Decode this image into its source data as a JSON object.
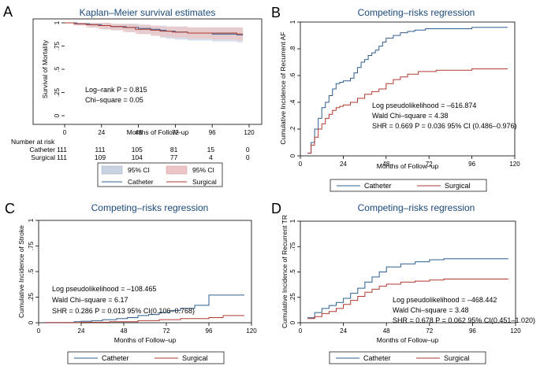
{
  "colors": {
    "catheter": "#2f5f8f",
    "surgical": "#b03a30",
    "catheter_ci": "#c9d3e2",
    "surgical_ci": "#ecc6c6",
    "title": "#1a4a7a",
    "axis": "#000000"
  },
  "panels": [
    {
      "letter": "A",
      "title": "Kaplan–Meier survival estimates",
      "xlabel": "Months of Follow–up",
      "ylabel": "Survival of Mortality",
      "annotations": [
        "Log–rank P = 0.815",
        "Chi–square = 0.05"
      ],
      "legend": {
        "items": [
          "95% CI",
          "95% CI",
          "Catheter",
          "Surgical"
        ]
      },
      "risk_table": {
        "header": "Number at risk",
        "rows": [
          {
            "label": "Catheter",
            "values": [
              "111",
              "111",
              "105",
              "81",
              "15",
              "0"
            ]
          },
          {
            "label": "Surgical",
            "values": [
              "111",
              "109",
              "104",
              "77",
              "4",
              "0"
            ]
          }
        ]
      }
    },
    {
      "letter": "B",
      "title": "Competing–risks regression",
      "xlabel": "Months of Follow–up",
      "ylabel": "Cumulative Incidence of Recurrent AF",
      "annotations": [
        "Log pseudolikelihood = –616.874",
        "Wald Chi–square = 4.38",
        "SHR = 0.669 P = 0.036 95% CI (0.486–0.976)"
      ],
      "legend": {
        "items": [
          "Catheter",
          "Surgical"
        ]
      }
    },
    {
      "letter": "C",
      "title": "Competing–risks regression",
      "xlabel": "Months of Follow–up",
      "ylabel": "Cumulative Incidence of Stroke",
      "annotations": [
        "Log pseudolikelihood = –108.465",
        "Wald Chi–square = 6.17",
        "SHR = 0.286 P = 0.013 95% CI(0.106–0.768)"
      ],
      "legend": {
        "items": [
          "Catheter",
          "Surgical"
        ]
      }
    },
    {
      "letter": "D",
      "title": "Competing–risks regression",
      "xlabel": "Months of Follow–up",
      "ylabel": "Cumulative Incidence of Recurrent TR",
      "annotations": [
        "Log pseudolikelihood = –468.442",
        "Wald Chi–square = 3.48",
        "SHR = 0.678 P = 0.062 95% CI(0.451–1.020)"
      ],
      "legend": {
        "items": [
          "Catheter",
          "Surgical"
        ]
      }
    }
  ],
  "chart_data": [
    {
      "type": "line",
      "panel": "A",
      "title": "Kaplan–Meier survival estimates",
      "xlabel": "Months of Follow–up",
      "ylabel": "Survival of Mortality",
      "xlim": [
        0,
        120
      ],
      "ylim": [
        0,
        1
      ],
      "xticks": [
        0,
        24,
        48,
        72,
        96,
        120
      ],
      "xtick_labels": [
        "0",
        "24",
        "48",
        "72",
        "96",
        "120"
      ],
      "yticks": [
        0,
        0.25,
        0.5,
        0.75,
        1
      ],
      "ytick_labels": [
        "0",
        ".25",
        ".5",
        ".75",
        "1"
      ],
      "series": [
        {
          "name": "Catheter",
          "x": [
            0,
            8,
            16,
            24,
            30,
            40,
            48,
            56,
            62,
            66,
            72,
            80,
            96,
            112,
            116
          ],
          "y": [
            1,
            0.99,
            0.98,
            0.97,
            0.96,
            0.95,
            0.94,
            0.93,
            0.92,
            0.91,
            0.9,
            0.89,
            0.88,
            0.87,
            0.87
          ],
          "ci_lower": [
            1,
            0.97,
            0.95,
            0.93,
            0.92,
            0.9,
            0.88,
            0.86,
            0.84,
            0.83,
            0.82,
            0.81,
            0.8,
            0.79,
            0.79
          ],
          "ci_upper": [
            1,
            1,
            1,
            1,
            0.99,
            0.99,
            0.98,
            0.97,
            0.97,
            0.96,
            0.96,
            0.95,
            0.95,
            0.95,
            0.95
          ]
        },
        {
          "name": "Surgical",
          "x": [
            0,
            6,
            14,
            22,
            30,
            38,
            46,
            56,
            62,
            70,
            80,
            96,
            112,
            116
          ],
          "y": [
            1,
            0.99,
            0.98,
            0.97,
            0.96,
            0.95,
            0.93,
            0.92,
            0.91,
            0.9,
            0.89,
            0.89,
            0.88,
            0.88
          ],
          "ci_lower": [
            1,
            0.97,
            0.95,
            0.93,
            0.92,
            0.9,
            0.88,
            0.86,
            0.85,
            0.84,
            0.83,
            0.82,
            0.81,
            0.81
          ],
          "ci_upper": [
            1,
            1,
            1,
            1,
            0.99,
            0.99,
            0.98,
            0.97,
            0.96,
            0.96,
            0.95,
            0.95,
            0.95,
            0.95
          ]
        }
      ]
    },
    {
      "type": "line",
      "panel": "B",
      "title": "Competing–risks regression",
      "xlabel": "Months of Follow–up",
      "ylabel": "Cumulative Incidence of Recurrent AF",
      "xlim": [
        0,
        120
      ],
      "ylim": [
        0,
        1
      ],
      "xticks": [
        0,
        24,
        48,
        72,
        96,
        120
      ],
      "xtick_labels": [
        "0",
        "24",
        "48",
        "72",
        "96",
        "120"
      ],
      "yticks": [
        0,
        0.2,
        0.4,
        0.6,
        0.8,
        1
      ],
      "ytick_labels": [
        "0",
        ".2",
        ".4",
        ".6",
        ".8",
        "1"
      ],
      "series": [
        {
          "name": "Catheter",
          "x": [
            4,
            6,
            8,
            10,
            12,
            14,
            16,
            18,
            20,
            22,
            24,
            28,
            30,
            32,
            34,
            36,
            38,
            40,
            42,
            44,
            46,
            48,
            52,
            56,
            60,
            64,
            70,
            80,
            96,
            116
          ],
          "y": [
            0.02,
            0.1,
            0.2,
            0.28,
            0.36,
            0.4,
            0.45,
            0.5,
            0.54,
            0.55,
            0.56,
            0.58,
            0.62,
            0.66,
            0.7,
            0.72,
            0.75,
            0.77,
            0.79,
            0.82,
            0.85,
            0.88,
            0.9,
            0.92,
            0.93,
            0.94,
            0.95,
            0.95,
            0.96,
            0.96
          ]
        },
        {
          "name": "Surgical",
          "x": [
            4,
            6,
            8,
            10,
            12,
            14,
            16,
            18,
            20,
            22,
            24,
            28,
            32,
            36,
            40,
            44,
            48,
            52,
            56,
            60,
            66,
            76,
            96,
            116
          ],
          "y": [
            0.02,
            0.08,
            0.14,
            0.2,
            0.24,
            0.28,
            0.31,
            0.34,
            0.36,
            0.37,
            0.38,
            0.4,
            0.43,
            0.46,
            0.48,
            0.5,
            0.54,
            0.57,
            0.59,
            0.61,
            0.63,
            0.64,
            0.65,
            0.65
          ]
        }
      ]
    },
    {
      "type": "line",
      "panel": "C",
      "title": "Competing–risks regression",
      "xlabel": "Months of Follow–up",
      "ylabel": "Cumulative Incidence of Stroke",
      "xlim": [
        0,
        120
      ],
      "ylim": [
        0,
        1
      ],
      "xticks": [
        0,
        24,
        48,
        72,
        96,
        120
      ],
      "xtick_labels": [
        "0",
        "24",
        "48",
        "72",
        "96",
        "120"
      ],
      "yticks": [
        0,
        0.25,
        0.5,
        0.75,
        1
      ],
      "ytick_labels": [
        "0",
        ".25",
        ".5",
        ".75",
        "1"
      ],
      "series": [
        {
          "name": "Catheter",
          "x": [
            4,
            20,
            24,
            30,
            36,
            44,
            50,
            56,
            62,
            68,
            74,
            80,
            88,
            96,
            116
          ],
          "y": [
            0.002,
            0.01,
            0.015,
            0.02,
            0.03,
            0.04,
            0.05,
            0.07,
            0.08,
            0.1,
            0.12,
            0.14,
            0.17,
            0.27,
            0.27
          ]
        },
        {
          "name": "Surgical",
          "x": [
            4,
            24,
            40,
            56,
            68,
            80,
            96,
            104,
            116
          ],
          "y": [
            0.001,
            0.005,
            0.01,
            0.02,
            0.03,
            0.04,
            0.05,
            0.07,
            0.07
          ]
        }
      ]
    },
    {
      "type": "line",
      "panel": "D",
      "title": "Competing–risks regression",
      "xlabel": "Months of Follow–up",
      "ylabel": "Cumulative Incidence of Recurrent TR",
      "xlim": [
        0,
        120
      ],
      "ylim": [
        0,
        1
      ],
      "xticks": [
        0,
        24,
        48,
        72,
        96,
        120
      ],
      "xtick_labels": [
        "0",
        "24",
        "48",
        "72",
        "96",
        "120"
      ],
      "yticks": [
        0,
        0.25,
        0.5,
        0.75,
        1
      ],
      "ytick_labels": [
        "0",
        ".25",
        ".5",
        ".75",
        "1"
      ],
      "series": [
        {
          "name": "Catheter",
          "x": [
            4,
            8,
            12,
            16,
            20,
            24,
            28,
            32,
            36,
            40,
            44,
            48,
            56,
            64,
            72,
            80,
            96,
            116
          ],
          "y": [
            0.05,
            0.1,
            0.14,
            0.17,
            0.2,
            0.24,
            0.29,
            0.34,
            0.4,
            0.45,
            0.5,
            0.55,
            0.58,
            0.6,
            0.62,
            0.63,
            0.63,
            0.63
          ]
        },
        {
          "name": "Surgical",
          "x": [
            4,
            8,
            12,
            16,
            20,
            24,
            28,
            32,
            36,
            40,
            44,
            48,
            56,
            64,
            72,
            80,
            96,
            116
          ],
          "y": [
            0.04,
            0.06,
            0.09,
            0.11,
            0.14,
            0.18,
            0.22,
            0.26,
            0.3,
            0.33,
            0.36,
            0.38,
            0.4,
            0.41,
            0.42,
            0.43,
            0.43,
            0.43
          ]
        }
      ]
    }
  ]
}
